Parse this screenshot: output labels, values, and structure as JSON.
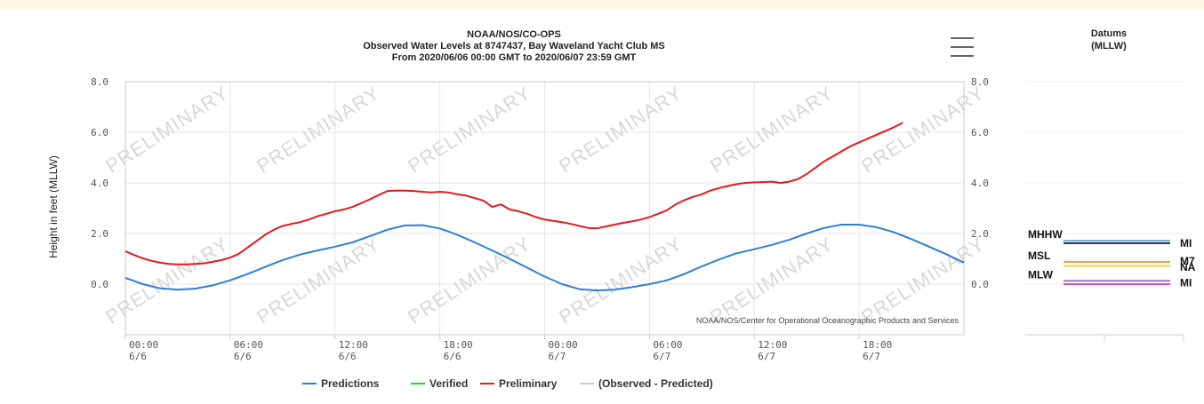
{
  "title": {
    "line1": "NOAA/NOS/CO-OPS",
    "line2": "Observed Water Levels at 8747437, Bay Waveland Yacht Club MS",
    "line3": "From 2020/06/06 00:00 GMT to 2020/06/07 23:59 GMT"
  },
  "menu_icon": "hamburger-menu-icon",
  "watermark": "PRELIMINARY",
  "credit": "NOAA/NOS/Center for Operational Oceanographic Products and Services",
  "chart_data": {
    "type": "line",
    "ylabel": "Height in feet (MLLW)",
    "ylim": [
      -2.0,
      8.0
    ],
    "y_ticks": [
      "8.0",
      "6.0",
      "4.0",
      "2.0",
      "0.0"
    ],
    "y_tick_values": [
      8,
      6,
      4,
      2,
      0
    ],
    "xlim_hours": [
      0,
      48
    ],
    "x_ticks": [
      {
        "hour": 0,
        "time": "00:00",
        "date": "6/6"
      },
      {
        "hour": 6,
        "time": "06:00",
        "date": "6/6"
      },
      {
        "hour": 12,
        "time": "12:00",
        "date": "6/6"
      },
      {
        "hour": 18,
        "time": "18:00",
        "date": "6/6"
      },
      {
        "hour": 24,
        "time": "00:00",
        "date": "6/7"
      },
      {
        "hour": 30,
        "time": "06:00",
        "date": "6/7"
      },
      {
        "hour": 36,
        "time": "12:00",
        "date": "6/7"
      },
      {
        "hour": 42,
        "time": "18:00",
        "date": "6/7"
      }
    ],
    "series": [
      {
        "name": "Predictions",
        "color": "#2f7ed8",
        "x": [
          0,
          1,
          2,
          3,
          4,
          5,
          6,
          7,
          8,
          9,
          10,
          11,
          12,
          13,
          14,
          15,
          16,
          17,
          18,
          19,
          20,
          21,
          22,
          23,
          24,
          25,
          26,
          27,
          28,
          29,
          30,
          31,
          32,
          33,
          34,
          35,
          36,
          37,
          38,
          39,
          40,
          41,
          42,
          43,
          44,
          45,
          46,
          47,
          48
        ],
        "values": [
          0.25,
          0.0,
          -0.17,
          -0.22,
          -0.18,
          -0.05,
          0.15,
          0.4,
          0.68,
          0.95,
          1.17,
          1.33,
          1.48,
          1.65,
          1.9,
          2.15,
          2.32,
          2.33,
          2.2,
          1.95,
          1.65,
          1.33,
          1.0,
          0.65,
          0.3,
          0.0,
          -0.2,
          -0.25,
          -0.22,
          -0.12,
          0.0,
          0.15,
          0.4,
          0.7,
          0.98,
          1.22,
          1.38,
          1.55,
          1.75,
          2.0,
          2.22,
          2.35,
          2.35,
          2.25,
          2.05,
          1.78,
          1.48,
          1.18,
          0.85
        ]
      },
      {
        "name": "Verified",
        "color": "#2bd62b",
        "x": [],
        "values": []
      },
      {
        "name": "Preliminary",
        "color": "#e41a1c",
        "x": [
          0,
          0.5,
          1,
          1.5,
          2,
          2.5,
          3,
          3.5,
          4,
          4.5,
          5,
          5.5,
          6,
          6.5,
          7,
          7.5,
          8,
          8.5,
          9,
          9.5,
          10,
          10.5,
          11,
          11.5,
          12,
          12.5,
          13,
          13.5,
          14,
          14.5,
          15,
          15.5,
          16,
          16.5,
          17,
          17.5,
          18,
          18.5,
          19,
          19.5,
          20,
          20.5,
          21,
          21.5,
          22,
          22.5,
          23,
          23.5,
          24,
          24.5,
          25,
          25.5,
          26,
          26.5,
          27,
          27.5,
          28,
          28.5,
          29,
          29.5,
          30,
          30.5,
          31,
          31.5,
          32,
          32.5,
          33,
          33.5,
          34,
          34.5,
          35,
          35.5,
          36,
          36.5,
          37,
          37.5,
          38,
          38.5,
          39,
          39.5,
          40,
          40.5,
          41,
          41.5,
          42,
          42.5,
          43,
          43.5,
          44,
          44.5,
          45,
          45.5,
          46,
          46.5,
          47,
          47.5,
          48
        ],
        "values": [
          1.3,
          1.15,
          1.02,
          0.92,
          0.85,
          0.8,
          0.78,
          0.78,
          0.8,
          0.82,
          0.88,
          0.95,
          1.05,
          1.2,
          1.45,
          1.7,
          1.95,
          2.15,
          2.3,
          2.38,
          2.45,
          2.55,
          2.68,
          2.78,
          2.88,
          2.95,
          3.05,
          3.2,
          3.35,
          3.52,
          3.68,
          3.7,
          3.7,
          3.68,
          3.65,
          3.62,
          3.65,
          3.62,
          3.55,
          3.5,
          3.4,
          3.3,
          3.05,
          3.15,
          2.95,
          2.88,
          2.78,
          2.65,
          2.55,
          2.5,
          2.45,
          2.38,
          2.3,
          2.22,
          2.2,
          2.28,
          2.35,
          2.42,
          2.48,
          2.55,
          2.65,
          2.78,
          2.92,
          3.15,
          3.32,
          3.45,
          3.55,
          3.7,
          3.8,
          3.88,
          3.95,
          4.0,
          4.02,
          4.03,
          4.05,
          4.0,
          4.05,
          4.15,
          4.35,
          4.6,
          4.85,
          5.05,
          5.25,
          5.45,
          5.6,
          5.75,
          5.9,
          6.05,
          6.2,
          6.38,
          null,
          null,
          null,
          null,
          null,
          null,
          null
        ]
      },
      {
        "name": "(Observed - Predicted)",
        "color": "#cccccc",
        "x": [],
        "values": []
      }
    ],
    "legend_position": "bottom-center",
    "grid": true
  },
  "datums": {
    "title_line1": "Datums",
    "title_line2": "(MLLW)",
    "lines": [
      {
        "label": "MHHW",
        "value": 1.72,
        "color": "#7fb3d5"
      },
      {
        "label": "",
        "value": 1.62,
        "color": "#1f2a44"
      },
      {
        "label": "MSL",
        "value": 0.88,
        "color": "#f0a030"
      },
      {
        "label": "",
        "value": 0.72,
        "color": "#f2cf40"
      },
      {
        "label": "MLW",
        "value": 0.13,
        "color": "#8e7cc3"
      },
      {
        "label": "",
        "value": 0.0,
        "color": "#e0509a"
      }
    ],
    "right_labels": [
      {
        "text": "MI",
        "value": 1.62
      },
      {
        "text": "M7",
        "value": 0.92
      },
      {
        "text": "NA",
        "value": 0.66
      },
      {
        "text": "MI",
        "value": 0.05
      }
    ]
  }
}
